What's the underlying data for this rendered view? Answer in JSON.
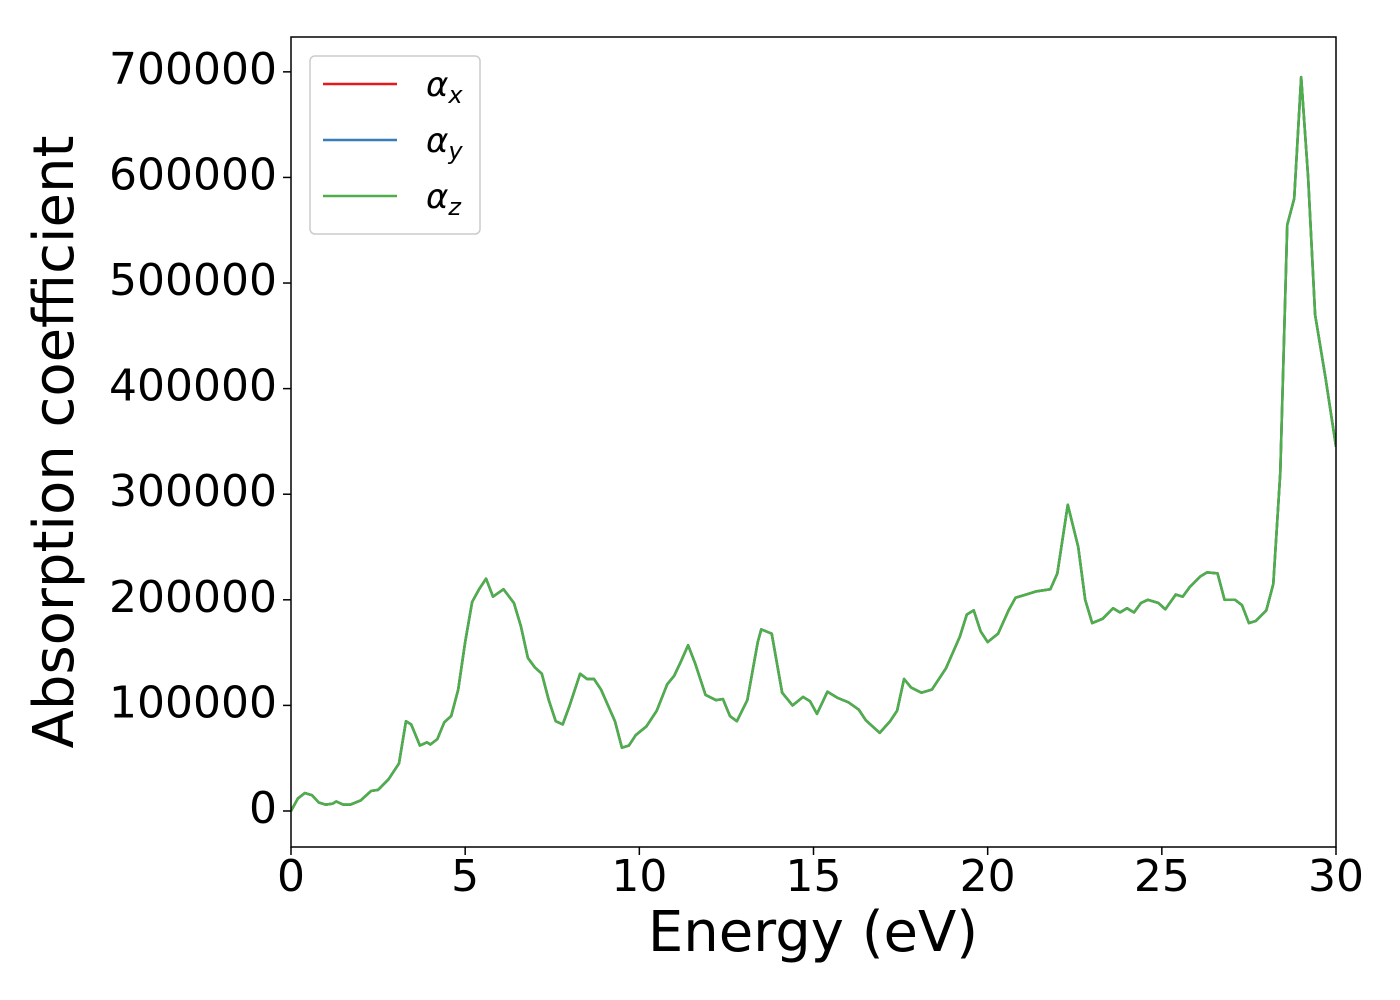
{
  "chart_data": {
    "type": "line",
    "xlabel": "Energy (eV)",
    "ylabel": "Absorption coefficient",
    "xlim": [
      0,
      30
    ],
    "ylim": [
      -34100,
      733000
    ],
    "xticks": [
      0,
      5,
      10,
      15,
      20,
      25,
      30
    ],
    "yticks": [
      0,
      100000,
      200000,
      300000,
      400000,
      500000,
      600000,
      700000
    ],
    "grid": false,
    "legend": "upper left",
    "x": [
      0,
      0.2,
      0.4,
      0.6,
      0.8,
      1.0,
      1.2,
      1.3,
      1.5,
      1.7,
      2.0,
      2.3,
      2.5,
      2.8,
      3.1,
      3.3,
      3.45,
      3.7,
      3.9,
      4.0,
      4.2,
      4.4,
      4.6,
      4.8,
      5.0,
      5.2,
      5.4,
      5.6,
      5.8,
      6.1,
      6.4,
      6.6,
      6.8,
      7.0,
      7.2,
      7.4,
      7.6,
      7.8,
      8.0,
      8.3,
      8.5,
      8.7,
      8.9,
      9.1,
      9.3,
      9.5,
      9.7,
      9.9,
      10.2,
      10.5,
      10.8,
      11.0,
      11.2,
      11.4,
      11.6,
      11.9,
      12.2,
      12.4,
      12.6,
      12.8,
      13.1,
      13.4,
      13.5,
      13.8,
      14.1,
      14.4,
      14.7,
      14.9,
      15.1,
      15.4,
      15.7,
      16.0,
      16.3,
      16.5,
      16.7,
      16.9,
      17.2,
      17.4,
      17.6,
      17.8,
      18.1,
      18.4,
      18.8,
      19.2,
      19.4,
      19.6,
      19.8,
      20.0,
      20.3,
      20.6,
      20.8,
      21.1,
      21.4,
      21.8,
      22.0,
      22.3,
      22.6,
      22.8,
      23.0,
      23.3,
      23.6,
      23.8,
      24.0,
      24.2,
      24.4,
      24.6,
      24.9,
      25.1,
      25.4,
      25.6,
      25.8,
      26.1,
      26.3,
      26.6,
      26.8,
      27.1,
      27.3,
      27.5,
      27.7,
      28.0,
      28.2,
      28.4,
      28.6,
      28.8,
      29.0,
      29.2,
      29.4,
      29.7,
      30.0
    ],
    "series": [
      {
        "name": "αx",
        "color": "#e41a1c",
        "values": [
          0,
          12000,
          17000,
          15000,
          8000,
          6000,
          7000,
          9000,
          6000,
          6000,
          10000,
          19000,
          20000,
          30000,
          45000,
          85000,
          82000,
          62000,
          65000,
          63000,
          68000,
          84000,
          90000,
          115000,
          160000,
          198000,
          210000,
          220000,
          203000,
          210000,
          197000,
          175000,
          145000,
          136000,
          130000,
          105000,
          85000,
          82000,
          100000,
          130000,
          125000,
          125000,
          115000,
          100000,
          85000,
          60000,
          62000,
          72000,
          80000,
          95000,
          120000,
          128000,
          142000,
          157000,
          140000,
          110000,
          105000,
          106000,
          90000,
          85000,
          105000,
          160000,
          172000,
          168000,
          112000,
          100000,
          108000,
          104000,
          92000,
          113000,
          107000,
          103000,
          96000,
          86000,
          80000,
          74000,
          85000,
          95000,
          125000,
          117000,
          112000,
          115000,
          135000,
          165000,
          186000,
          190000,
          170000,
          160000,
          168000,
          190000,
          202000,
          205000,
          208000,
          210000,
          225000,
          290000,
          250000,
          200000,
          178000,
          182000,
          192000,
          188000,
          192000,
          188000,
          197000,
          200000,
          197000,
          191000,
          205000,
          203000,
          212000,
          222000,
          226000,
          225000,
          200000,
          200000,
          195000,
          178000,
          180000,
          190000,
          215000,
          320000,
          555000,
          580000,
          695000,
          600000,
          470000,
          410000,
          345000
        ]
      },
      {
        "name": "αy",
        "color": "#377eb8",
        "values": [
          0,
          12000,
          17000,
          15000,
          8000,
          6000,
          7000,
          9000,
          6000,
          6000,
          10000,
          19000,
          20000,
          30000,
          45000,
          85000,
          82000,
          62000,
          65000,
          63000,
          68000,
          84000,
          90000,
          115000,
          160000,
          198000,
          210000,
          220000,
          203000,
          210000,
          197000,
          175000,
          145000,
          136000,
          130000,
          105000,
          85000,
          82000,
          100000,
          130000,
          125000,
          125000,
          115000,
          100000,
          85000,
          60000,
          62000,
          72000,
          80000,
          95000,
          120000,
          128000,
          142000,
          157000,
          140000,
          110000,
          105000,
          106000,
          90000,
          85000,
          105000,
          160000,
          172000,
          168000,
          112000,
          100000,
          108000,
          104000,
          92000,
          113000,
          107000,
          103000,
          96000,
          86000,
          80000,
          74000,
          85000,
          95000,
          125000,
          117000,
          112000,
          115000,
          135000,
          165000,
          186000,
          190000,
          170000,
          160000,
          168000,
          190000,
          202000,
          205000,
          208000,
          210000,
          225000,
          290000,
          250000,
          200000,
          178000,
          182000,
          192000,
          188000,
          192000,
          188000,
          197000,
          200000,
          197000,
          191000,
          205000,
          203000,
          212000,
          222000,
          226000,
          225000,
          200000,
          200000,
          195000,
          178000,
          180000,
          190000,
          215000,
          320000,
          555000,
          580000,
          695000,
          600000,
          470000,
          410000,
          345000
        ]
      },
      {
        "name": "αz",
        "color": "#4daf4a",
        "values": [
          0,
          12000,
          17000,
          15000,
          8000,
          6000,
          7000,
          9000,
          6000,
          6000,
          10000,
          19000,
          20000,
          30000,
          45000,
          85000,
          82000,
          62000,
          65000,
          63000,
          68000,
          84000,
          90000,
          115000,
          160000,
          198000,
          210000,
          220000,
          203000,
          210000,
          197000,
          175000,
          145000,
          136000,
          130000,
          105000,
          85000,
          82000,
          100000,
          130000,
          125000,
          125000,
          115000,
          100000,
          85000,
          60000,
          62000,
          72000,
          80000,
          95000,
          120000,
          128000,
          142000,
          157000,
          140000,
          110000,
          105000,
          106000,
          90000,
          85000,
          105000,
          160000,
          172000,
          168000,
          112000,
          100000,
          108000,
          104000,
          92000,
          113000,
          107000,
          103000,
          96000,
          86000,
          80000,
          74000,
          85000,
          95000,
          125000,
          117000,
          112000,
          115000,
          135000,
          165000,
          186000,
          190000,
          170000,
          160000,
          168000,
          190000,
          202000,
          205000,
          208000,
          210000,
          225000,
          290000,
          250000,
          200000,
          178000,
          182000,
          192000,
          188000,
          192000,
          188000,
          197000,
          200000,
          197000,
          191000,
          205000,
          203000,
          212000,
          222000,
          226000,
          225000,
          200000,
          200000,
          195000,
          178000,
          180000,
          190000,
          215000,
          320000,
          555000,
          580000,
          695000,
          600000,
          470000,
          410000,
          345000
        ]
      }
    ]
  }
}
